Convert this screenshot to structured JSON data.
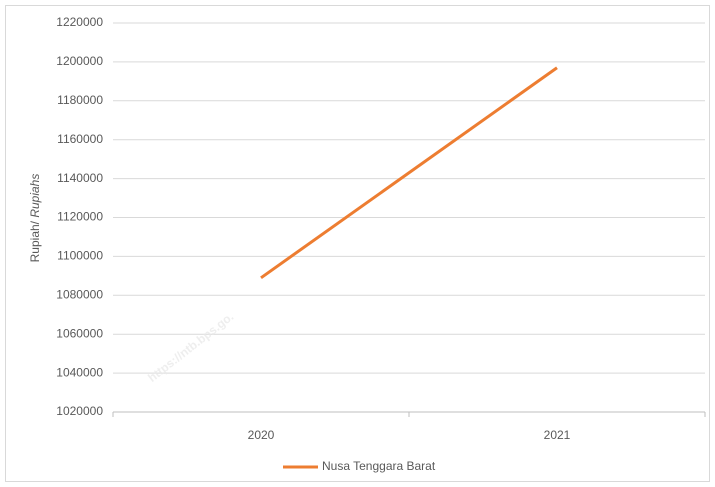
{
  "chart_data": {
    "type": "line",
    "ylabel": [
      "Rupiah/ ",
      "Rupiahs"
    ],
    "watermark": "https://ntb.bps.go.",
    "categories": [
      "2020",
      "2021"
    ],
    "series": [
      {
        "name": "Nusa Tenggara Barat",
        "color": "#ed7d31",
        "values": [
          1089000,
          1197000
        ]
      }
    ],
    "ylim": [
      1020000,
      1220000
    ],
    "yticks": [
      1020000,
      1040000,
      1060000,
      1080000,
      1100000,
      1120000,
      1140000,
      1160000,
      1180000,
      1200000,
      1220000
    ],
    "grid": true,
    "legend": "bottom"
  }
}
